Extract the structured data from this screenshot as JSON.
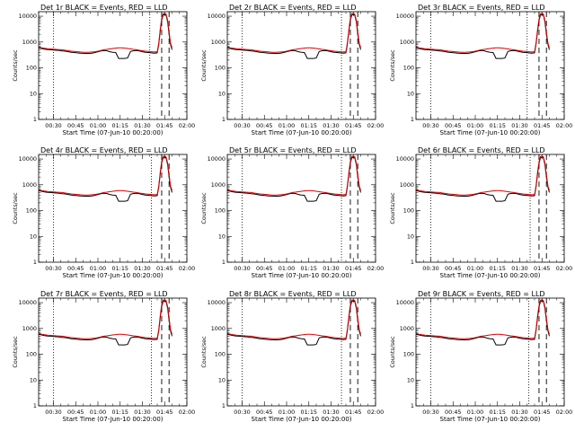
{
  "chart_data": [
    {
      "type": "line",
      "title": "Det 1r BLACK = Events, RED = LLD",
      "xlabel": "Start Time (07-Jun-10 00:20:00)",
      "ylabel": "Counts/sec"
    },
    {
      "type": "line",
      "title": "Det 2r BLACK = Events, RED = LLD",
      "xlabel": "Start Time (07-Jun-10 00:20:00)",
      "ylabel": "Counts/sec"
    },
    {
      "type": "line",
      "title": "Det 3r BLACK = Events, RED = LLD",
      "xlabel": "Start Time (07-Jun-10 00:20:00)",
      "ylabel": "Counts/sec"
    },
    {
      "type": "line",
      "title": "Det 4r BLACK = Events, RED = LLD",
      "xlabel": "Start Time (07-Jun-10 00:20:00)",
      "ylabel": "Counts/sec"
    },
    {
      "type": "line",
      "title": "Det 5r BLACK = Events, RED = LLD",
      "xlabel": "Start Time (07-Jun-10 00:20:00)",
      "ylabel": "Counts/sec"
    },
    {
      "type": "line",
      "title": "Det 6r BLACK = Events, RED = LLD",
      "xlabel": "Start Time (07-Jun-10 00:20:00)",
      "ylabel": "Counts/sec"
    },
    {
      "type": "line",
      "title": "Det 7r BLACK = Events, RED = LLD",
      "xlabel": "Start Time (07-Jun-10 00:20:00)",
      "ylabel": "Counts/sec"
    },
    {
      "type": "line",
      "title": "Det 8r BLACK = Events, RED = LLD",
      "xlabel": "Start Time (07-Jun-10 00:20:00)",
      "ylabel": "Counts/sec"
    },
    {
      "type": "line",
      "title": "Det 9r BLACK = Events, RED = LLD",
      "xlabel": "Start Time (07-Jun-10 00:20:00)",
      "ylabel": "Counts/sec"
    }
  ],
  "shared": {
    "x_range_minutes": [
      20,
      120
    ],
    "x_ticks": [
      "00:30",
      "00:45",
      "01:00",
      "01:15",
      "01:30",
      "01:45",
      "02:00"
    ],
    "x_tick_minutes": [
      30,
      45,
      60,
      75,
      90,
      105,
      120
    ],
    "y_log_range": [
      1,
      15000
    ],
    "y_ticks": [
      "1",
      "10",
      "100",
      "1000",
      "10000"
    ],
    "y_tick_values": [
      1,
      10,
      100,
      1000,
      10000
    ],
    "colors": {
      "events": "#000000",
      "lld": "#dd0000"
    },
    "dotted_vlines_minutes": [
      [
        30,
        95
      ],
      [
        30,
        97
      ],
      [
        30,
        95
      ],
      [
        30,
        96
      ],
      [
        30,
        97
      ],
      [
        30,
        97
      ],
      [
        30,
        96
      ],
      [
        30,
        97
      ],
      [
        30,
        96
      ]
    ],
    "dashed_vlines_minutes": [
      103,
      108
    ],
    "events_series": {
      "x": [
        20,
        22,
        24,
        26,
        28,
        30,
        32,
        34,
        36,
        38,
        40,
        42,
        44,
        46,
        48,
        50,
        52,
        54,
        56,
        58,
        60,
        62,
        64,
        66,
        68,
        70,
        72,
        74,
        76,
        78,
        80,
        82,
        84,
        86,
        88,
        90,
        92,
        94,
        96,
        98,
        100,
        101,
        102,
        103,
        104,
        105,
        106,
        107,
        108,
        109,
        110
      ],
      "y": [
        600,
        560,
        530,
        510,
        500,
        490,
        480,
        470,
        450,
        440,
        420,
        400,
        390,
        380,
        370,
        365,
        360,
        360,
        370,
        390,
        420,
        450,
        470,
        460,
        420,
        400,
        390,
        230,
        230,
        230,
        240,
        430,
        460,
        470,
        450,
        420,
        400,
        390,
        380,
        370,
        380,
        800,
        2500,
        7000,
        11000,
        12000,
        11000,
        6000,
        2000,
        800,
        500
      ]
    },
    "lld_series": {
      "x": [
        20,
        22,
        24,
        26,
        28,
        30,
        32,
        34,
        36,
        38,
        40,
        42,
        44,
        46,
        48,
        50,
        52,
        54,
        56,
        58,
        60,
        62,
        64,
        66,
        68,
        70,
        72,
        74,
        76,
        78,
        80,
        82,
        84,
        86,
        88,
        90,
        92,
        94,
        96,
        98,
        100,
        101,
        102,
        103,
        104,
        105,
        106,
        107,
        108,
        109,
        110
      ],
      "y": [
        650,
        600,
        570,
        550,
        540,
        530,
        520,
        510,
        500,
        480,
        460,
        440,
        430,
        420,
        410,
        400,
        400,
        405,
        410,
        420,
        440,
        470,
        500,
        520,
        540,
        560,
        580,
        600,
        600,
        580,
        560,
        540,
        520,
        500,
        480,
        460,
        440,
        430,
        420,
        410,
        420,
        900,
        3000,
        8000,
        12500,
        13000,
        12000,
        7000,
        2500,
        900,
        600
      ]
    }
  }
}
